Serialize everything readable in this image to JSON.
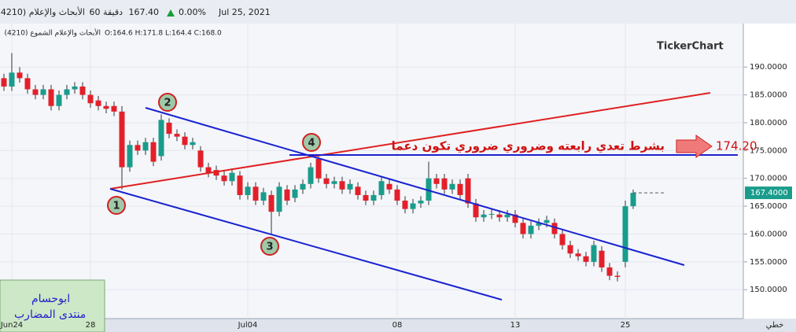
{
  "header": {
    "symbol": "(4210) الأبحاث والإعلام",
    "interval": "60 دقيقة",
    "price": "167.40",
    "change": "0.00%",
    "date": "Jul 25, 2021",
    "legend_name": "الأبحاث والإعلام الشموع (4210)",
    "ohlc": "O:164.6 H:171.8 L:164.4 C:168.0"
  },
  "chart_data": {
    "type": "candlestick",
    "watermark": "TickerChart",
    "categories": [
      null,
      "Jun24",
      null,
      null,
      null,
      null,
      null,
      null,
      null,
      null,
      null,
      "28",
      null,
      null,
      null,
      null,
      null,
      null,
      null,
      null,
      null,
      null,
      null,
      null,
      null,
      null,
      null,
      null,
      null,
      null,
      null,
      "Jul04",
      null,
      null,
      null,
      null,
      null,
      null,
      null,
      null,
      null,
      null,
      null,
      null,
      null,
      null,
      null,
      null,
      null,
      null,
      "08",
      null,
      null,
      null,
      null,
      null,
      null,
      null,
      null,
      null,
      null,
      null,
      null,
      null,
      null,
      "13",
      null,
      null,
      null,
      null,
      null,
      null,
      null,
      null,
      null,
      null,
      null,
      null,
      null,
      "25",
      null
    ],
    "open": [
      188,
      186.5,
      189,
      188,
      186,
      185,
      186,
      183,
      185,
      186,
      186.5,
      185,
      184,
      183,
      183,
      182,
      172,
      176,
      175,
      176.5,
      174,
      180,
      178,
      177.5,
      176,
      175,
      172,
      171.5,
      170.5,
      169.5,
      170.5,
      167,
      168.5,
      166,
      167,
      164,
      168,
      166.5,
      168,
      169,
      173.5,
      170,
      169,
      169.5,
      168,
      168.5,
      167,
      166,
      167,
      169,
      168,
      166,
      164.5,
      165.5,
      166,
      170,
      170,
      168,
      169,
      170,
      165.5,
      163,
      163.5,
      163.5,
      163,
      163.5,
      162,
      160,
      161.5,
      162,
      162,
      160,
      158,
      156.5,
      156,
      155,
      157,
      154,
      152.5,
      155,
      165
    ],
    "high": [
      188.8,
      192.5,
      190,
      188.8,
      186.8,
      186.8,
      186.8,
      185.8,
      186.8,
      187.3,
      187.3,
      185.8,
      184.8,
      183.8,
      183.8,
      183,
      176.8,
      176.8,
      177.3,
      177.3,
      181.5,
      180.8,
      178.8,
      178.3,
      177.3,
      175.8,
      172.8,
      172.3,
      171.3,
      171.8,
      171.3,
      169.3,
      169.3,
      168.3,
      167.8,
      169.3,
      168.8,
      168.8,
      169.8,
      172.8,
      174,
      170.8,
      170.3,
      170.3,
      169.8,
      169.3,
      167.8,
      167.8,
      170.3,
      169.8,
      168.8,
      166.8,
      166.3,
      166.8,
      173,
      170.8,
      170.8,
      169.8,
      169.8,
      170.8,
      166.3,
      164.3,
      164.4,
      164.3,
      164.3,
      164.3,
      162.8,
      162.3,
      162.8,
      163.3,
      162.8,
      160.8,
      158.8,
      157.3,
      156.8,
      158.8,
      157.8,
      154.8,
      153.3,
      166,
      168
    ],
    "low": [
      185.7,
      185.7,
      187.2,
      185.2,
      184.2,
      184.2,
      182.2,
      182.2,
      184.2,
      185.2,
      184.2,
      182.7,
      182.2,
      181.7,
      181.2,
      168,
      171.2,
      174.2,
      174.2,
      172.2,
      173.2,
      177.2,
      176.7,
      175.2,
      175.2,
      171.2,
      170.2,
      169.7,
      168.7,
      168.7,
      166.2,
      166.2,
      165.2,
      165.2,
      160,
      163.2,
      165.2,
      165.7,
      167.2,
      168.2,
      169.2,
      168.2,
      168.2,
      167.2,
      167.2,
      166.2,
      165.2,
      165.2,
      166.2,
      167.2,
      165.2,
      163.7,
      163.7,
      164.7,
      165.2,
      168.2,
      167.2,
      167.2,
      166.2,
      164.7,
      162.2,
      162.2,
      162.7,
      162.2,
      162.2,
      161.2,
      159.2,
      159.2,
      160.7,
      161.2,
      159.2,
      157.2,
      155.7,
      155.2,
      154.2,
      154.2,
      153.2,
      151.7,
      151.5,
      154,
      164.5
    ],
    "close": [
      186.5,
      189,
      188,
      186,
      185,
      186,
      183,
      185,
      186,
      186.5,
      185,
      183.5,
      183,
      182.5,
      182,
      172,
      176,
      175,
      176.5,
      173,
      180.5,
      178,
      177.5,
      176,
      176.5,
      172,
      171,
      170.5,
      169.5,
      171,
      167,
      168.5,
      166,
      167.5,
      164,
      168.5,
      166,
      168,
      169,
      172,
      170,
      169,
      169.5,
      168,
      169,
      167,
      166,
      167,
      169.5,
      168,
      166,
      164.5,
      165.5,
      166,
      170,
      169,
      168,
      169,
      167,
      165.5,
      163,
      163.5,
      163.6,
      163,
      163.5,
      162,
      160,
      161.5,
      162,
      162.5,
      160,
      158,
      156.5,
      156,
      155,
      158,
      154,
      152.5,
      152.3,
      165,
      167.4
    ],
    "up_color": "#1a9c8c",
    "down_color": "#e3202a",
    "ylim": [
      144.8,
      197.1
    ],
    "yticks": [
      {
        "value": 150,
        "label": "150.0000"
      },
      {
        "value": 155,
        "label": "155.0000"
      },
      {
        "value": 160,
        "label": "160.0000"
      },
      {
        "value": 165,
        "label": "165.0000"
      },
      {
        "value": 170,
        "label": "170.0000"
      },
      {
        "value": 175,
        "label": "175.0000"
      },
      {
        "value": 180,
        "label": "180.0000"
      },
      {
        "value": 185,
        "label": "185.0000"
      },
      {
        "value": 190,
        "label": "190.0000"
      }
    ],
    "last_price": {
      "value": 167.4,
      "label": "167.4000"
    },
    "hline": {
      "value": 174.2,
      "label": "174.20"
    },
    "note": "بشرط تعدي رابعته وضروري ضروري تكون دعما",
    "points": [
      "1",
      "2",
      "3",
      "4"
    ],
    "author": [
      "ابوحسام",
      "منتدى المضارب"
    ],
    "scale_mode": "خطي"
  }
}
